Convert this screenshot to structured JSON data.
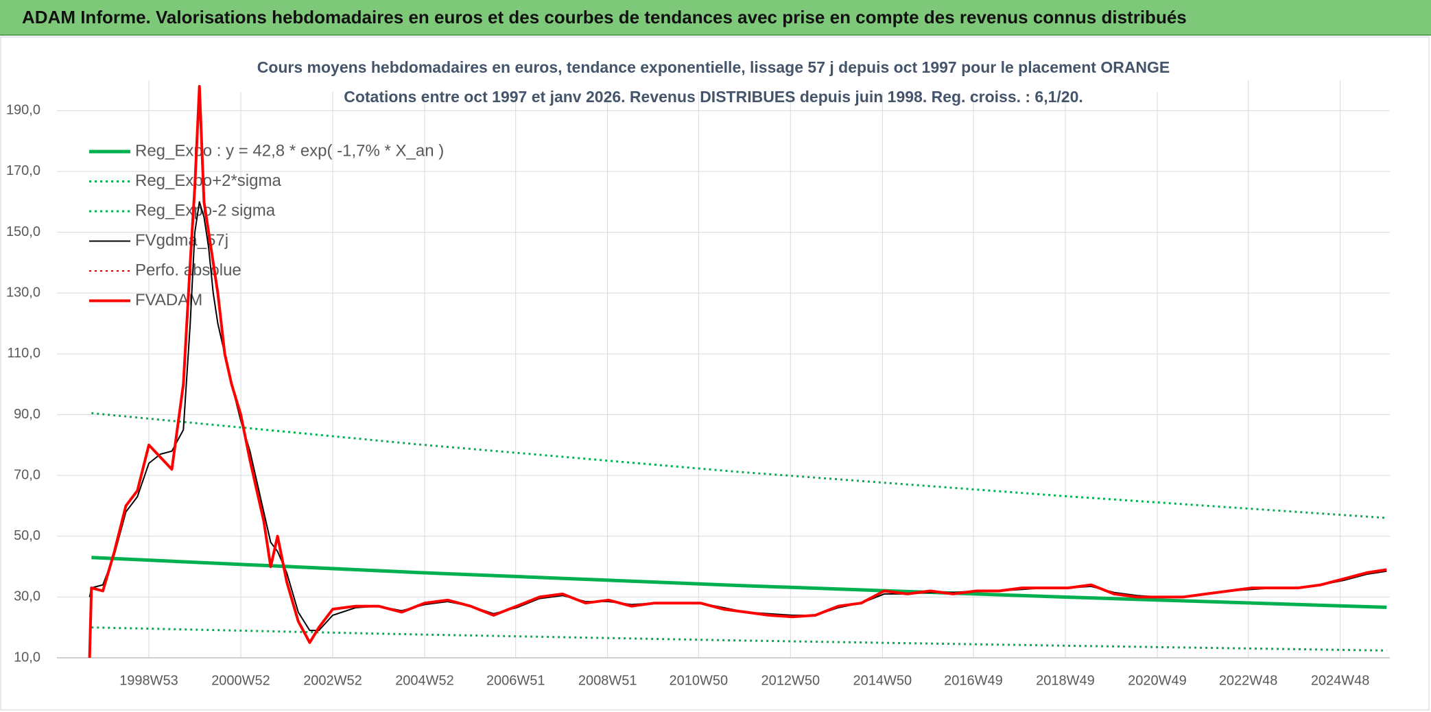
{
  "header": {
    "title": "ADAM Informe. Valorisations hebdomadaires en euros et des courbes de tendances avec prise en compte des revenus connus distribués"
  },
  "chart_data": {
    "type": "line",
    "title": "Cours moyens hebdomadaires en euros, tendance exponentielle, lissage 57 j depuis oct 1997 pour le placement ORANGE",
    "subtitle": "Cotations entre oct 1997 et janv 2026. Revenus DISTRIBUES depuis juin 1998. Reg. croiss. : 6,1/20.",
    "x": [
      1997.71,
      1997.75,
      1998.0,
      1998.25,
      1998.5,
      1998.75,
      1999.0,
      1999.25,
      1999.5,
      1999.75,
      1999.9,
      2000.0,
      2000.1,
      2000.2,
      2000.3,
      2000.4,
      2000.5,
      2000.65,
      2000.8,
      2001.0,
      2001.2,
      2001.35,
      2001.5,
      2001.65,
      2001.8,
      2002.0,
      2002.25,
      2002.5,
      2002.7,
      2003.0,
      2003.5,
      2004.0,
      2004.5,
      2005.0,
      2005.5,
      2006.0,
      2006.5,
      2007.0,
      2007.5,
      2008.0,
      2008.5,
      2009.0,
      2009.5,
      2010.0,
      2010.5,
      2011.0,
      2011.5,
      2012.0,
      2012.5,
      2013.0,
      2013.5,
      2014.0,
      2014.5,
      2015.0,
      2015.5,
      2016.0,
      2016.5,
      2017.0,
      2017.5,
      2018.0,
      2018.5,
      2019.0,
      2019.5,
      2020.0,
      2020.5,
      2021.0,
      2021.5,
      2022.0,
      2022.5,
      2023.0,
      2023.5,
      2024.0,
      2024.5,
      2025.0,
      2025.5,
      2025.93
    ],
    "series": [
      {
        "name": "Reg_Expo : y = 42,8 * exp( -1,7% *  X_an )",
        "color": "#00b050",
        "style": "solid",
        "width": 5,
        "x": [
          1997.75,
          2004.8,
          2011.8,
          2018.9,
          2025.93
        ],
        "values": [
          43,
          38.1,
          33.8,
          30,
          26.6
        ]
      },
      {
        "name": "Reg_Expo+2*sigma",
        "color": "#00b050",
        "style": "dotted",
        "width": 3,
        "x": [
          1997.75,
          2004.8,
          2011.8,
          2018.9,
          2025.93
        ],
        "values": [
          90.5,
          80.3,
          71.2,
          63.2,
          56
        ]
      },
      {
        "name": "Reg_Expo-2 sigma",
        "color": "#00b050",
        "style": "dotted",
        "width": 3,
        "x": [
          1997.75,
          2004.8,
          2011.8,
          2018.9,
          2025.93
        ],
        "values": [
          20,
          17.7,
          15.7,
          14,
          12.4
        ]
      },
      {
        "name": "FVgdma_57j",
        "color": "#000000",
        "style": "solid",
        "width": 2,
        "values": [
          30,
          33,
          34,
          44,
          58,
          63,
          74,
          77,
          78,
          85,
          120,
          150,
          160,
          155,
          145,
          130,
          120,
          110,
          100,
          88,
          78,
          68,
          58,
          48,
          45,
          38,
          25,
          19,
          19,
          24,
          26.5,
          27,
          25.5,
          27.5,
          28.5,
          27,
          24.5,
          26.5,
          29.5,
          30.5,
          28.5,
          28.5,
          27.5,
          28,
          28,
          28,
          26.5,
          25,
          24.5,
          24,
          24,
          26.5,
          28,
          31,
          31,
          31.5,
          31.5,
          32,
          32,
          32.5,
          33,
          33,
          33.5,
          31.5,
          30.5,
          30,
          30,
          31,
          32,
          32.5,
          33,
          33,
          34,
          35.5,
          37.5,
          38.5
        ]
      },
      {
        "name": "Perfo. absolue",
        "color": "#c00000",
        "style": "dotted",
        "width": 2
      },
      {
        "name": "FVADAM",
        "color": "#ff0000",
        "style": "solid",
        "width": 4,
        "values": [
          10,
          33,
          32,
          45,
          60,
          65,
          80,
          76,
          72,
          100,
          140,
          165,
          198,
          160,
          150,
          140,
          130,
          110,
          100,
          90,
          75,
          65,
          55,
          40,
          50,
          35,
          22,
          15,
          20,
          26,
          27,
          27,
          25,
          28,
          29,
          27,
          24,
          27,
          30,
          31,
          28,
          29,
          27,
          28,
          28,
          28,
          26,
          25,
          24,
          23.5,
          24,
          27,
          28,
          32,
          31,
          32,
          31,
          32,
          32,
          33,
          33,
          33,
          34,
          31,
          30,
          30,
          30,
          31,
          32,
          33,
          33,
          33,
          34,
          36,
          38,
          39
        ]
      }
    ],
    "xlim": [
      1997.0,
      2026.0
    ],
    "xticks": [
      {
        "value": 1999.0,
        "label": "1998W53"
      },
      {
        "value": 2001.0,
        "label": "2000W52"
      },
      {
        "value": 2003.0,
        "label": "2002W52"
      },
      {
        "value": 2005.0,
        "label": "2004W52"
      },
      {
        "value": 2006.98,
        "label": "2006W51"
      },
      {
        "value": 2008.98,
        "label": "2008W51"
      },
      {
        "value": 2010.96,
        "label": "2010W50"
      },
      {
        "value": 2012.96,
        "label": "2012W50"
      },
      {
        "value": 2014.96,
        "label": "2014W50"
      },
      {
        "value": 2016.94,
        "label": "2016W49"
      },
      {
        "value": 2018.94,
        "label": "2018W49"
      },
      {
        "value": 2020.94,
        "label": "2020W49"
      },
      {
        "value": 2022.92,
        "label": "2022W48"
      },
      {
        "value": 2024.92,
        "label": "2024W48"
      }
    ],
    "ylim": [
      10,
      200
    ],
    "yticks": [
      {
        "value": 10,
        "label": "10,0"
      },
      {
        "value": 30,
        "label": "30,0"
      },
      {
        "value": 50,
        "label": "50,0"
      },
      {
        "value": 70,
        "label": "70,0"
      },
      {
        "value": 90,
        "label": "90,0"
      },
      {
        "value": 110,
        "label": "110,0"
      },
      {
        "value": 130,
        "label": "130,0"
      },
      {
        "value": 150,
        "label": "150,0"
      },
      {
        "value": 170,
        "label": "170,0"
      },
      {
        "value": 190,
        "label": "190,0"
      }
    ],
    "grid": true,
    "legend": "upper left"
  }
}
